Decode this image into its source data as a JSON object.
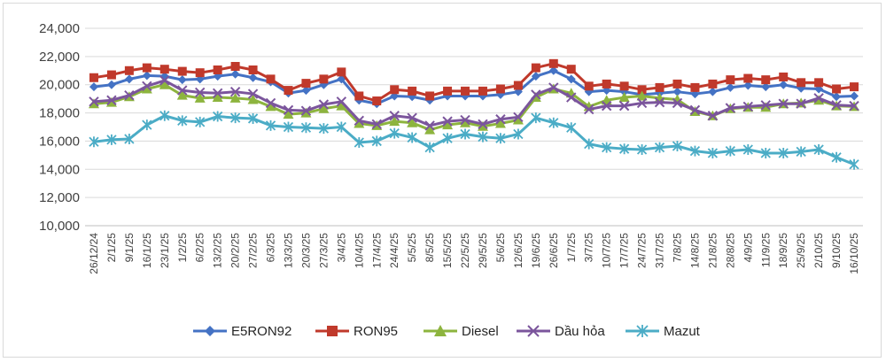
{
  "chart_data": {
    "type": "line",
    "title": "",
    "xlabel": "",
    "ylabel": "",
    "ylim": [
      10000,
      24000
    ],
    "yticks": [
      10000,
      12000,
      14000,
      16000,
      18000,
      20000,
      22000,
      24000
    ],
    "ytick_labels": [
      "10,000",
      "12,000",
      "14,000",
      "16,000",
      "18,000",
      "20,000",
      "22,000",
      "24,000"
    ],
    "grid": "horizontal",
    "legend_position": "bottom",
    "x_labels": [
      "26/12/24",
      "2/1/25",
      "9/1/25",
      "16/1/25",
      "23/1/25",
      "1/2/25",
      "6/2/25",
      "13/2/25",
      "20/2/25",
      "27/2/25",
      "6/3/25",
      "13/3/25",
      "20/3/25",
      "27/3/25",
      "3/4/25",
      "10/4/25",
      "17/4/25",
      "24/4/25",
      "5/5/25",
      "8/5/25",
      "15/5/25",
      "22/5/25",
      "29/5/25",
      "5/6/25",
      "12/6/25",
      "19/6/25",
      "26/6/25",
      "1/7/25",
      "3/7/25",
      "10/7/25",
      "17/7/25",
      "24/7/25",
      "31/7/25",
      "7/8/25",
      "14/8/25",
      "21/8/25",
      "28/8/25",
      "4/9/25",
      "11/9/25",
      "18/9/25",
      "25/9/25",
      "2/10/25",
      "9/10/25",
      "16/10/25"
    ],
    "series": [
      {
        "name": "E5RON92",
        "color": "#4472C4",
        "marker": "diamond",
        "values": [
          19850,
          20000,
          20400,
          20650,
          20600,
          20350,
          20400,
          20600,
          20750,
          20500,
          20200,
          19400,
          19600,
          20000,
          20400,
          18900,
          18650,
          19200,
          19150,
          18900,
          19200,
          19200,
          19200,
          19300,
          19500,
          20600,
          21000,
          20400,
          19500,
          19600,
          19500,
          19300,
          19400,
          19500,
          19350,
          19500,
          19800,
          19950,
          19850,
          20000,
          19750,
          19700,
          19150,
          19200
        ]
      },
      {
        "name": "RON95",
        "color": "#C0392B",
        "marker": "square",
        "values": [
          20500,
          20700,
          21000,
          21200,
          21100,
          20950,
          20850,
          21050,
          21300,
          21050,
          20400,
          19600,
          20100,
          20400,
          20900,
          19200,
          18850,
          19650,
          19550,
          19200,
          19550,
          19550,
          19550,
          19700,
          19950,
          21200,
          21500,
          21100,
          19900,
          20050,
          19900,
          19650,
          19800,
          20050,
          19800,
          20050,
          20350,
          20450,
          20350,
          20550,
          20150,
          20150,
          19700,
          19850
        ]
      },
      {
        "name": "Diesel",
        "color": "#8DB43E",
        "marker": "triangle",
        "values": [
          18650,
          18750,
          19150,
          19700,
          20000,
          19250,
          19050,
          19100,
          19050,
          18950,
          18450,
          17900,
          18000,
          18300,
          18500,
          17250,
          17100,
          17400,
          17300,
          16800,
          17150,
          17300,
          17050,
          17250,
          17500,
          19100,
          19700,
          19400,
          18450,
          18900,
          19100,
          19200,
          19050,
          18950,
          18100,
          17800,
          18300,
          18400,
          18400,
          18650,
          18700,
          18900,
          18500,
          18450
        ]
      },
      {
        "name": "Dầu hỏa",
        "color": "#7B559C",
        "marker": "x",
        "values": [
          18800,
          18900,
          19250,
          19900,
          20300,
          19600,
          19450,
          19400,
          19500,
          19350,
          18700,
          18200,
          18150,
          18600,
          18800,
          17450,
          17200,
          17800,
          17650,
          17100,
          17400,
          17500,
          17200,
          17550,
          17700,
          19300,
          19800,
          19100,
          18250,
          18500,
          18500,
          18700,
          18750,
          18700,
          18200,
          17800,
          18350,
          18450,
          18550,
          18650,
          18650,
          19050,
          18550,
          18500
        ]
      },
      {
        "name": "Mazut",
        "color": "#4BACC6",
        "marker": "asterisk",
        "values": [
          15950,
          16100,
          16150,
          17150,
          17800,
          17450,
          17350,
          17750,
          17650,
          17600,
          17100,
          17000,
          16950,
          16900,
          17000,
          15900,
          16000,
          16550,
          16250,
          15550,
          16200,
          16500,
          16300,
          16200,
          16500,
          17650,
          17300,
          16950,
          15800,
          15550,
          15450,
          15400,
          15550,
          15650,
          15300,
          15150,
          15300,
          15400,
          15150,
          15150,
          15250,
          15400,
          14850,
          14350
        ]
      }
    ]
  }
}
